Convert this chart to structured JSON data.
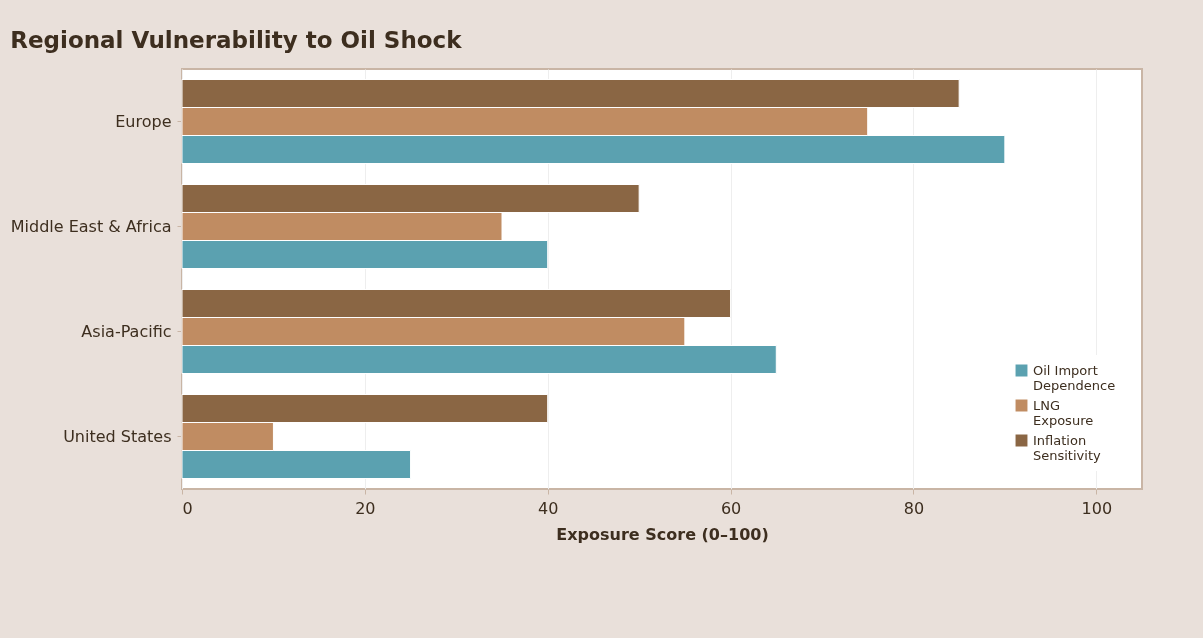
{
  "chart_data": {
    "type": "bar",
    "orientation": "horizontal",
    "title": "Regional Vulnerability to Oil Shock",
    "xlabel": "Exposure Score (0–100)",
    "categories": [
      "Europe",
      "Middle East & Africa",
      "Asia-Pacific",
      "United States"
    ],
    "series": [
      {
        "name": "Oil Import Dependence",
        "color": "#5ba1b0",
        "values": [
          90,
          40,
          65,
          25
        ]
      },
      {
        "name": "LNG Exposure",
        "color": "#c08c62",
        "values": [
          75,
          35,
          55,
          10
        ]
      },
      {
        "name": "Inflation Sensitivity",
        "color": "#8a6644",
        "values": [
          85,
          50,
          60,
          40
        ]
      }
    ],
    "xlim": [
      0,
      105
    ],
    "xticks": [
      0,
      20,
      40,
      60,
      80,
      100
    ],
    "grid": "x",
    "legend": "bottom right"
  }
}
